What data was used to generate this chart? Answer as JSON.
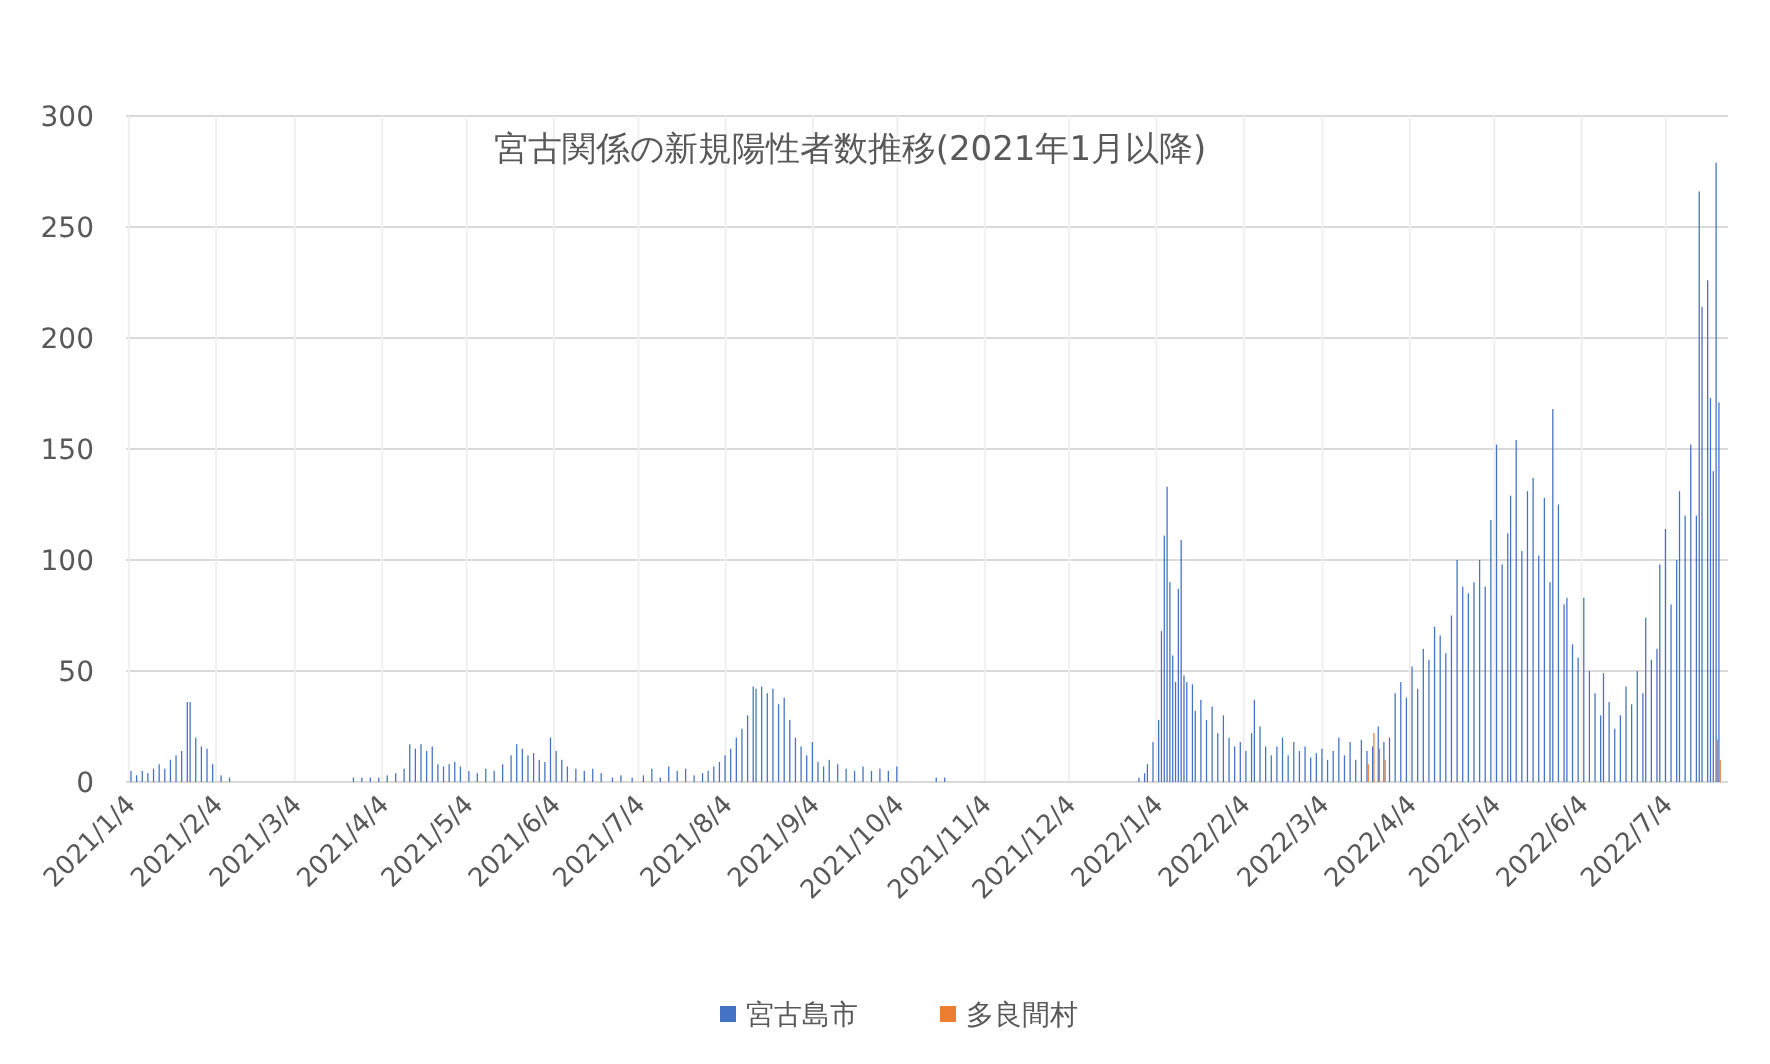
{
  "chart_data": {
    "type": "bar",
    "title": "宮古関係の新規陽性者数推移(2021年1月以降)",
    "xlim": [
      "2021-01-03",
      "2022-07-26"
    ],
    "xticks": [
      {
        "value": "2021-01-04",
        "label": "2021/1/4"
      },
      {
        "value": "2021-02-04",
        "label": "2021/2/4"
      },
      {
        "value": "2021-03-04",
        "label": "2021/3/4"
      },
      {
        "value": "2021-04-04",
        "label": "2021/4/4"
      },
      {
        "value": "2021-05-04",
        "label": "2021/5/4"
      },
      {
        "value": "2021-06-04",
        "label": "2021/6/4"
      },
      {
        "value": "2021-07-04",
        "label": "2021/7/4"
      },
      {
        "value": "2021-08-04",
        "label": "2021/8/4"
      },
      {
        "value": "2021-09-04",
        "label": "2021/9/4"
      },
      {
        "value": "2021-10-04",
        "label": "2021/10/4"
      },
      {
        "value": "2021-11-04",
        "label": "2021/11/4"
      },
      {
        "value": "2021-12-04",
        "label": "2021/12/4"
      },
      {
        "value": "2022-01-04",
        "label": "2022/1/4"
      },
      {
        "value": "2022-02-04",
        "label": "2022/2/4"
      },
      {
        "value": "2022-03-04",
        "label": "2022/3/4"
      },
      {
        "value": "2022-04-04",
        "label": "2022/4/4"
      },
      {
        "value": "2022-05-04",
        "label": "2022/5/4"
      },
      {
        "value": "2022-06-04",
        "label": "2022/6/4"
      },
      {
        "value": "2022-07-04",
        "label": "2022/7/4"
      }
    ],
    "ylim": [
      0,
      300
    ],
    "yticks": [
      0,
      50,
      100,
      150,
      200,
      250,
      300
    ],
    "grid": true,
    "legend": "bottom",
    "series": [
      {
        "name": "宮古島市",
        "color": "#4472c4",
        "x": [
          "2021-01-05",
          "2021-01-07",
          "2021-01-09",
          "2021-01-11",
          "2021-01-13",
          "2021-01-15",
          "2021-01-17",
          "2021-01-19",
          "2021-01-21",
          "2021-01-23",
          "2021-01-25",
          "2021-01-26",
          "2021-01-28",
          "2021-01-30",
          "2021-02-01",
          "2021-02-03",
          "2021-02-06",
          "2021-02-09",
          "2021-03-25",
          "2021-03-28",
          "2021-03-31",
          "2021-04-03",
          "2021-04-06",
          "2021-04-09",
          "2021-04-12",
          "2021-04-14",
          "2021-04-16",
          "2021-04-18",
          "2021-04-20",
          "2021-04-22",
          "2021-04-24",
          "2021-04-26",
          "2021-04-28",
          "2021-04-30",
          "2021-05-02",
          "2021-05-05",
          "2021-05-08",
          "2021-05-11",
          "2021-05-14",
          "2021-05-17",
          "2021-05-20",
          "2021-05-22",
          "2021-05-24",
          "2021-05-26",
          "2021-05-28",
          "2021-05-30",
          "2021-06-01",
          "2021-06-03",
          "2021-06-05",
          "2021-06-07",
          "2021-06-09",
          "2021-06-12",
          "2021-06-15",
          "2021-06-18",
          "2021-06-21",
          "2021-06-25",
          "2021-06-28",
          "2021-07-02",
          "2021-07-06",
          "2021-07-09",
          "2021-07-12",
          "2021-07-15",
          "2021-07-18",
          "2021-07-21",
          "2021-07-24",
          "2021-07-27",
          "2021-07-29",
          "2021-07-31",
          "2021-08-02",
          "2021-08-04",
          "2021-08-06",
          "2021-08-08",
          "2021-08-10",
          "2021-08-12",
          "2021-08-14",
          "2021-08-15",
          "2021-08-17",
          "2021-08-19",
          "2021-08-21",
          "2021-08-23",
          "2021-08-25",
          "2021-08-27",
          "2021-08-29",
          "2021-08-31",
          "2021-09-02",
          "2021-09-04",
          "2021-09-06",
          "2021-09-08",
          "2021-09-10",
          "2021-09-13",
          "2021-09-16",
          "2021-09-19",
          "2021-09-22",
          "2021-09-25",
          "2021-09-28",
          "2021-10-01",
          "2021-10-04",
          "2021-10-18",
          "2021-10-21",
          "2021-12-29",
          "2021-12-31",
          "2022-01-01",
          "2022-01-03",
          "2022-01-05",
          "2022-01-06",
          "2022-01-07",
          "2022-01-08",
          "2022-01-09",
          "2022-01-10",
          "2022-01-11",
          "2022-01-12",
          "2022-01-13",
          "2022-01-14",
          "2022-01-15",
          "2022-01-17",
          "2022-01-18",
          "2022-01-20",
          "2022-01-22",
          "2022-01-24",
          "2022-01-26",
          "2022-01-28",
          "2022-01-30",
          "2022-02-01",
          "2022-02-03",
          "2022-02-05",
          "2022-02-07",
          "2022-02-08",
          "2022-02-10",
          "2022-02-12",
          "2022-02-14",
          "2022-02-16",
          "2022-02-18",
          "2022-02-20",
          "2022-02-22",
          "2022-02-24",
          "2022-02-26",
          "2022-02-28",
          "2022-03-02",
          "2022-03-04",
          "2022-03-06",
          "2022-03-08",
          "2022-03-10",
          "2022-03-12",
          "2022-03-14",
          "2022-03-16",
          "2022-03-18",
          "2022-03-20",
          "2022-03-22",
          "2022-03-24",
          "2022-03-26",
          "2022-03-28",
          "2022-03-30",
          "2022-04-01",
          "2022-04-03",
          "2022-04-05",
          "2022-04-07",
          "2022-04-09",
          "2022-04-11",
          "2022-04-13",
          "2022-04-15",
          "2022-04-17",
          "2022-04-19",
          "2022-04-21",
          "2022-04-23",
          "2022-04-25",
          "2022-04-27",
          "2022-04-29",
          "2022-05-01",
          "2022-05-03",
          "2022-05-05",
          "2022-05-07",
          "2022-05-09",
          "2022-05-10",
          "2022-05-12",
          "2022-05-14",
          "2022-05-16",
          "2022-05-18",
          "2022-05-20",
          "2022-05-22",
          "2022-05-24",
          "2022-05-25",
          "2022-05-27",
          "2022-05-29",
          "2022-05-30",
          "2022-06-01",
          "2022-06-03",
          "2022-06-05",
          "2022-06-07",
          "2022-06-09",
          "2022-06-11",
          "2022-06-12",
          "2022-06-14",
          "2022-06-16",
          "2022-06-18",
          "2022-06-20",
          "2022-06-22",
          "2022-06-24",
          "2022-06-26",
          "2022-06-27",
          "2022-06-29",
          "2022-07-01",
          "2022-07-02",
          "2022-07-04",
          "2022-07-06",
          "2022-07-08",
          "2022-07-09",
          "2022-07-11",
          "2022-07-13",
          "2022-07-15",
          "2022-07-16",
          "2022-07-17",
          "2022-07-19",
          "2022-07-20",
          "2022-07-21",
          "2022-07-22",
          "2022-07-23"
        ],
        "values": [
          5,
          3,
          5,
          4,
          6,
          8,
          6,
          10,
          12,
          14,
          36,
          36,
          20,
          16,
          15,
          8,
          3,
          2,
          2,
          2,
          2,
          2,
          3,
          4,
          6,
          17,
          15,
          17,
          14,
          16,
          8,
          7,
          8,
          9,
          7,
          5,
          4,
          6,
          5,
          8,
          12,
          17,
          15,
          12,
          13,
          10,
          9,
          20,
          14,
          10,
          7,
          6,
          5,
          6,
          4,
          2,
          3,
          2,
          3,
          6,
          2,
          7,
          5,
          6,
          3,
          4,
          5,
          7,
          9,
          12,
          15,
          20,
          24,
          30,
          43,
          42,
          43,
          40,
          42,
          35,
          38,
          28,
          20,
          16,
          12,
          18,
          9,
          7,
          10,
          8,
          6,
          5,
          7,
          5,
          6,
          5,
          7,
          2,
          2,
          2,
          4,
          8,
          18,
          28,
          68,
          111,
          133,
          90,
          57,
          45,
          87,
          109,
          48,
          45,
          44,
          32,
          37,
          28,
          34,
          22,
          30,
          20,
          16,
          18,
          14,
          22,
          37,
          25,
          16,
          12,
          16,
          20,
          12,
          18,
          14,
          16,
          11,
          13,
          15,
          10,
          14,
          20,
          12,
          18,
          10,
          19,
          14,
          16,
          25,
          18,
          20,
          40,
          45,
          38,
          52,
          42,
          60,
          55,
          70,
          66,
          58,
          75,
          100,
          88,
          85,
          90,
          100,
          88,
          118,
          152,
          98,
          112,
          129,
          154,
          104,
          131,
          137,
          102,
          128,
          90,
          168,
          125,
          80,
          83,
          62,
          56,
          83,
          50,
          40,
          30,
          49,
          36,
          24,
          30,
          43,
          35,
          50,
          40,
          74,
          55,
          60,
          98,
          114,
          80,
          100,
          131,
          120,
          152,
          120,
          266,
          214,
          226,
          173,
          140,
          279,
          171
        ]
      },
      {
        "name": "多良間村",
        "color": "#ed7d31",
        "x": [
          "2022-03-20",
          "2022-03-22",
          "2022-03-24",
          "2022-03-26",
          "2022-07-22",
          "2022-07-23"
        ],
        "values": [
          8,
          22,
          15,
          10,
          19,
          10
        ]
      }
    ]
  }
}
